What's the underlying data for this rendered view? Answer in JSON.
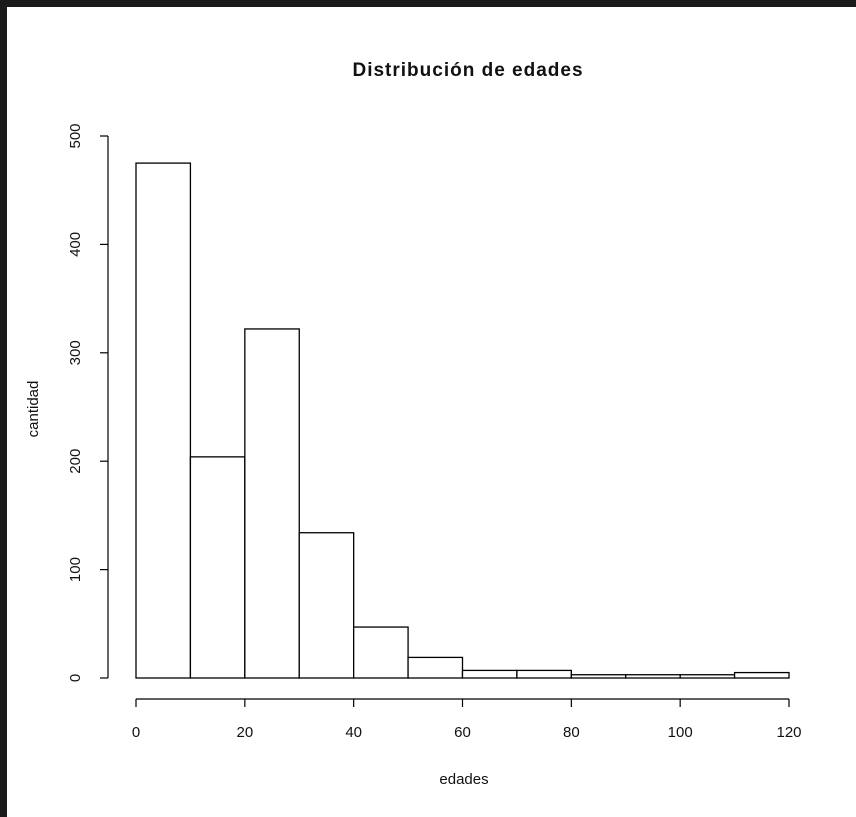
{
  "chart_data": {
    "type": "bar",
    "title": "Distribución de edades",
    "xlabel": "edades",
    "ylabel": "cantidad",
    "bin_edges": [
      0,
      10,
      20,
      30,
      40,
      50,
      60,
      70,
      80,
      90,
      100,
      110,
      120
    ],
    "values": [
      475,
      204,
      322,
      134,
      47,
      19,
      7,
      7,
      3,
      3,
      3,
      5
    ],
    "xlim": [
      0,
      120
    ],
    "ylim": [
      0,
      500
    ],
    "x_ticks": [
      0,
      20,
      40,
      60,
      80,
      100,
      120
    ],
    "y_ticks": [
      0,
      100,
      200,
      300,
      400,
      500
    ],
    "x_tick_labels": [
      "0",
      "20",
      "40",
      "60",
      "80",
      "100",
      "120"
    ],
    "y_tick_labels": [
      "0",
      "100",
      "200",
      "300",
      "400",
      "500"
    ],
    "grid": false
  }
}
